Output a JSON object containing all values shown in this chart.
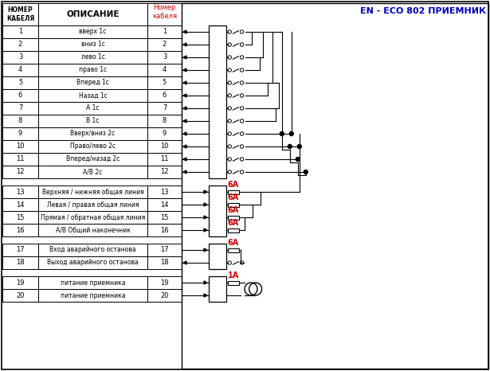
{
  "title": "EN - ECO 802 ПРИЕМНИК",
  "header_col1": "НОМЕР\nКАБЕЛЯ",
  "header_col2": "ОПИСАНИЕ",
  "header_col3": "Номер\nкабеля",
  "rows": [
    [
      1,
      "вверх 1с"
    ],
    [
      2,
      "вниз 1с"
    ],
    [
      3,
      "лево 1с"
    ],
    [
      4,
      "право 1с"
    ],
    [
      5,
      "Вперед 1с"
    ],
    [
      6,
      "Назад 1с"
    ],
    [
      7,
      "А 1с"
    ],
    [
      8,
      "В 1с"
    ],
    [
      9,
      "Вверх/вниз 2с"
    ],
    [
      10,
      "Право/лево 2с"
    ],
    [
      11,
      "Вперед/назад 2с"
    ],
    [
      12,
      "А/В 2с"
    ],
    [
      13,
      "Верхняя / нижняя общая линия"
    ],
    [
      14,
      "Левая / правая общая линия"
    ],
    [
      15,
      "Прямая / обратная общая линия"
    ],
    [
      16,
      "А/В Общий наконечник"
    ],
    [
      17,
      "Вход аварийного останова"
    ],
    [
      18,
      "Выход аварийного останова"
    ],
    [
      19,
      "питание приемника"
    ],
    [
      20,
      "питание приемника"
    ]
  ],
  "red_color": "#cc0000",
  "blue_color": "#0000bb",
  "black_color": "#000000",
  "bg_color": "#ffffff"
}
